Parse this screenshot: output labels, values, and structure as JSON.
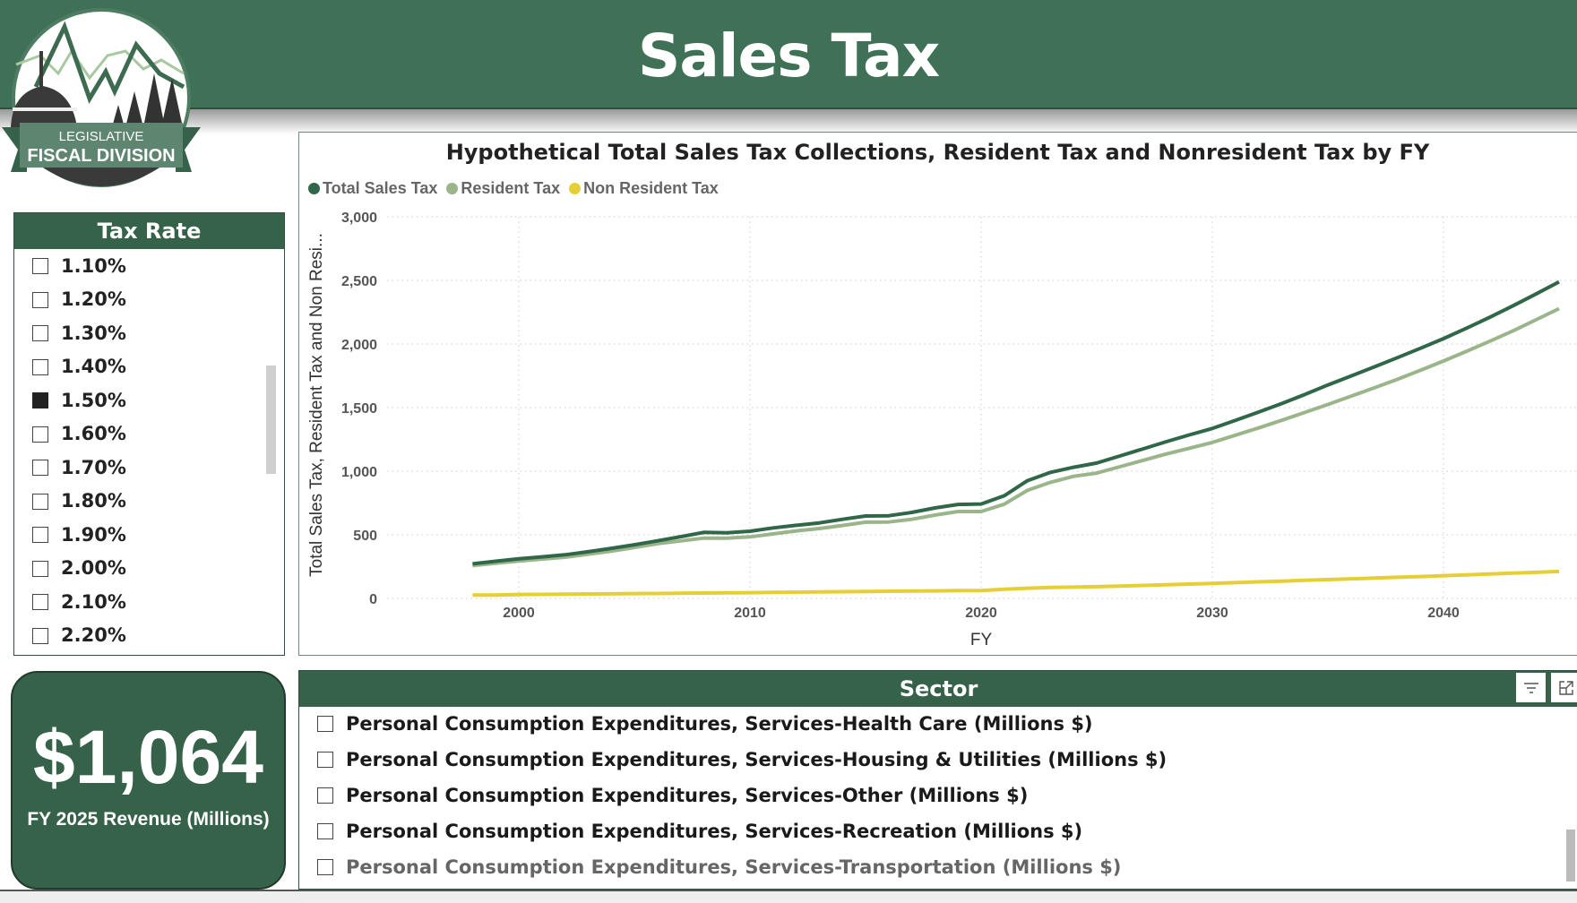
{
  "header": {
    "title": "Sales Tax"
  },
  "logo": {
    "line1": "LEGISLATIVE",
    "line2": "FISCAL DIVISION"
  },
  "tax_rate": {
    "title": "Tax Rate",
    "items": [
      {
        "label": "1.10%",
        "checked": false
      },
      {
        "label": "1.20%",
        "checked": false
      },
      {
        "label": "1.30%",
        "checked": false
      },
      {
        "label": "1.40%",
        "checked": false
      },
      {
        "label": "1.50%",
        "checked": true
      },
      {
        "label": "1.60%",
        "checked": false
      },
      {
        "label": "1.70%",
        "checked": false
      },
      {
        "label": "1.80%",
        "checked": false
      },
      {
        "label": "1.90%",
        "checked": false
      },
      {
        "label": "2.00%",
        "checked": false
      },
      {
        "label": "2.10%",
        "checked": false
      },
      {
        "label": "2.20%",
        "checked": false
      }
    ]
  },
  "revenue_card": {
    "value": "$1,064",
    "label": "FY 2025 Revenue (Millions)"
  },
  "sector": {
    "title": "Sector",
    "filter_icon": "filter-icon",
    "focus_icon": "focus-mode-icon",
    "items": [
      {
        "label": "Personal Consumption Expenditures, Services-Health Care (Millions $)",
        "checked": false
      },
      {
        "label": "Personal Consumption Expenditures, Services-Housing & Utilities (Millions $)",
        "checked": false
      },
      {
        "label": "Personal Consumption Expenditures, Services-Other (Millions $)",
        "checked": false
      },
      {
        "label": "Personal Consumption Expenditures, Services-Recreation (Millions $)",
        "checked": false
      },
      {
        "label": "Personal Consumption Expenditures, Services-Transportation (Millions $)",
        "checked": false
      }
    ]
  },
  "chart_data": {
    "type": "line",
    "title": "Hypothetical Total Sales Tax Collections, Resident Tax and Nonresident Tax by FY",
    "xlabel": "FY",
    "ylabel": "Total Sales Tax, Resident Tax and Non Resi...",
    "ylim": [
      0,
      3000
    ],
    "yticks": [
      "0",
      "500",
      "1,000",
      "1,500",
      "2,000",
      "2,500",
      "3,000"
    ],
    "xticks": [
      "2000",
      "2010",
      "2020",
      "2030",
      "2040"
    ],
    "grid": true,
    "legend_position": "top-left",
    "x": [
      1998,
      1999,
      2000,
      2001,
      2002,
      2003,
      2004,
      2005,
      2006,
      2007,
      2008,
      2009,
      2010,
      2011,
      2012,
      2013,
      2014,
      2015,
      2016,
      2017,
      2018,
      2019,
      2020,
      2021,
      2022,
      2023,
      2024,
      2025,
      2026,
      2027,
      2028,
      2029,
      2030,
      2031,
      2032,
      2033,
      2034,
      2035,
      2036,
      2037,
      2038,
      2039,
      2040,
      2041,
      2042,
      2043,
      2044,
      2045
    ],
    "series": [
      {
        "name": "Total Sales Tax",
        "color": "#2f6748",
        "values": [
          272,
          292,
          312,
          327,
          343,
          367,
          394,
          422,
          453,
          485,
          519,
          516,
          528,
          554,
          575,
          594,
          622,
          648,
          650,
          676,
          711,
          739,
          742,
          807,
          925,
          991,
          1031,
          1064,
          1120,
          1175,
          1232,
          1285,
          1336,
          1400,
          1465,
          1532,
          1603,
          1678,
          1748,
          1820,
          1892,
          1966,
          2042,
          2125,
          2210,
          2300,
          2393,
          2489
        ]
      },
      {
        "name": "Resident Tax",
        "color": "#9bb58a",
        "values": [
          258,
          276,
          294,
          309,
          324,
          347,
          371,
          400,
          430,
          452,
          474,
          474,
          484,
          507,
          531,
          549,
          573,
          599,
          601,
          622,
          655,
          683,
          683,
          741,
          849,
          913,
          960,
          985,
          1035,
          1085,
          1135,
          1180,
          1226,
          1283,
          1340,
          1400,
          1462,
          1525,
          1590,
          1655,
          1722,
          1793,
          1866,
          1943,
          2022,
          2103,
          2190,
          2278
        ]
      },
      {
        "name": "Non Resident Tax",
        "color": "#e6cf34",
        "values": [
          26,
          27,
          31,
          32,
          33,
          35,
          36,
          38,
          39,
          41,
          42,
          44,
          45,
          47,
          49,
          51,
          53,
          55,
          56,
          58,
          59,
          61,
          62,
          72,
          80,
          86,
          89,
          92,
          97,
          102,
          107,
          113,
          118,
          124,
          130,
          136,
          142,
          148,
          154,
          160,
          166,
          172,
          179,
          185,
          192,
          199,
          205,
          212
        ]
      }
    ]
  }
}
